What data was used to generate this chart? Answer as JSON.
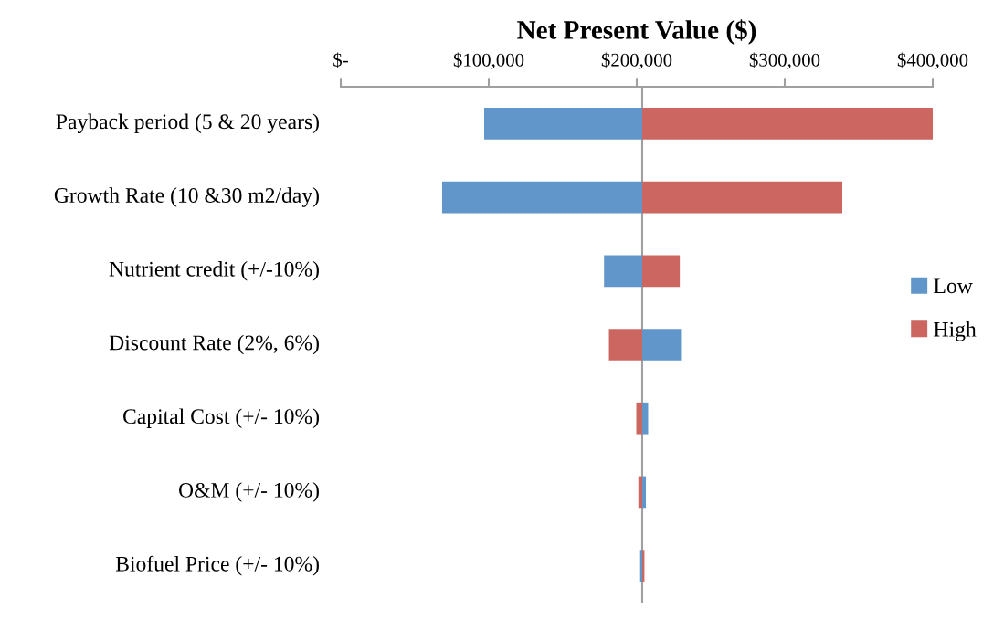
{
  "chart_data": {
    "type": "bar",
    "orientation": "horizontal",
    "title": "Net Present Value ($)",
    "categories": [
      "Payback period (5 & 20 years)",
      "Growth Rate (10 &30 m2/day)",
      "Nutrient credit (+/-10%)",
      "Discount Rate (2%, 6%)",
      "Capital Cost (+/- 10%)",
      "O&M (+/- 10%)",
      "Biofuel Price (+/- 10%)"
    ],
    "series": [
      {
        "name": "Low",
        "color": "#6096c9",
        "base": [
          203700,
          203700,
          203700,
          203700,
          203700,
          203700,
          203700
        ],
        "values": [
          -106800,
          -135200,
          -25800,
          26200,
          4000,
          2500,
          -1400
        ]
      },
      {
        "name": "High",
        "color": "#cc6660",
        "base": [
          203700,
          203700,
          203700,
          203700,
          203700,
          203700,
          203700
        ],
        "values": [
          196300,
          135200,
          25400,
          -22500,
          -4000,
          -2600,
          1500
        ]
      }
    ],
    "xlim": [
      0,
      400000
    ],
    "xticks": [
      {
        "value": 0,
        "label": "$-"
      },
      {
        "value": 100000,
        "label": "$100,000"
      },
      {
        "value": 200000,
        "label": "$200,000"
      },
      {
        "value": 300000,
        "label": "$300,000"
      },
      {
        "value": 400000,
        "label": "$400,000"
      }
    ],
    "ref_lines": [
      {
        "axis": "x",
        "value": 203700,
        "color": "#a0a0a0"
      }
    ],
    "grid": false,
    "legend": "right"
  }
}
